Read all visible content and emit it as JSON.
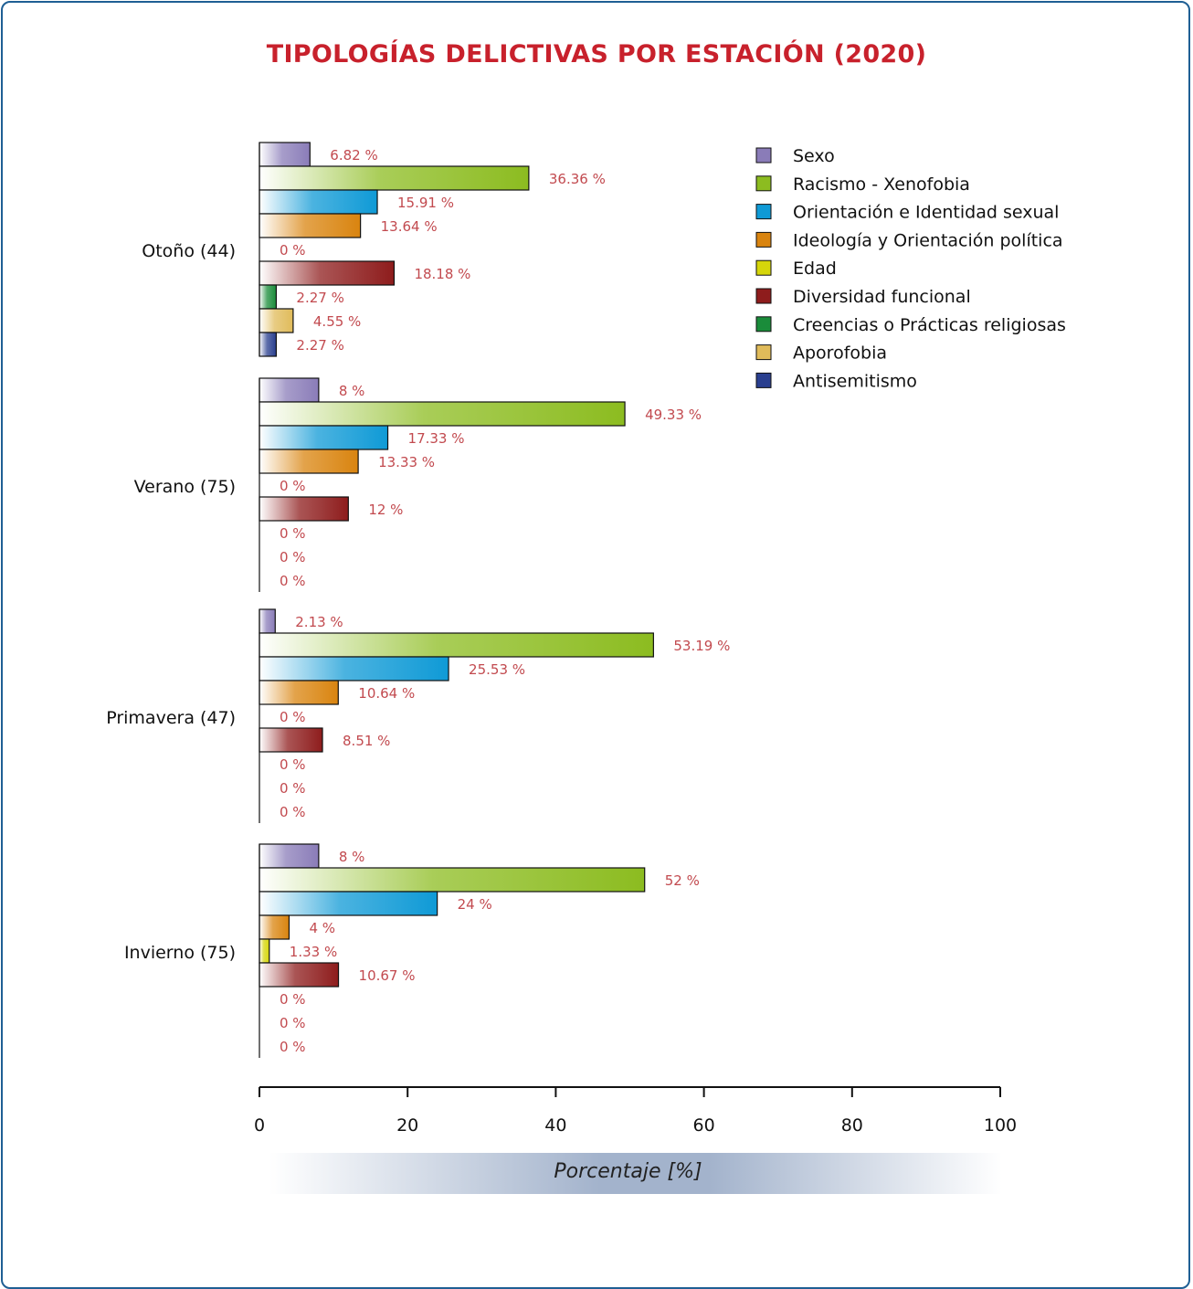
{
  "chart_data": {
    "type": "bar",
    "orientation": "horizontal",
    "title": "TIPOLOGÍAS DELICTIVAS POR ESTACIÓN (2020)",
    "xlabel": "Porcentaje [%]",
    "xlim": [
      0,
      100
    ],
    "xticks": [
      0,
      20,
      40,
      60,
      80,
      100
    ],
    "value_suffix": " %",
    "legend_position": "top-right",
    "categories": [
      "Otoño (44)",
      "Verano (75)",
      "Primavera (47)",
      "Invierno (75)"
    ],
    "series": [
      {
        "name": "Sexo",
        "color": "#8a7cb8",
        "values": [
          6.82,
          8,
          2.13,
          8
        ]
      },
      {
        "name": "Racismo - Xenofobia",
        "color": "#8cbc20",
        "values": [
          36.36,
          49.33,
          53.19,
          52
        ]
      },
      {
        "name": "Orientación e Identidad sexual",
        "color": "#0f9ad6",
        "values": [
          15.91,
          17.33,
          25.53,
          24
        ]
      },
      {
        "name": "Ideología y Orientación política",
        "color": "#d9840f",
        "values": [
          13.64,
          13.33,
          10.64,
          4
        ]
      },
      {
        "name": "Edad",
        "color": "#d6d60a",
        "values": [
          0,
          0,
          0,
          1.33
        ]
      },
      {
        "name": "Diversidad funcional",
        "color": "#8e1c1c",
        "values": [
          18.18,
          12,
          8.51,
          10.67
        ]
      },
      {
        "name": "Creencias o Prácticas religiosas",
        "color": "#1a8c3a",
        "values": [
          2.27,
          0,
          0,
          0
        ]
      },
      {
        "name": "Aporofobia",
        "color": "#e0bb5a",
        "values": [
          4.55,
          0,
          0,
          0
        ]
      },
      {
        "name": "Antisemitismo",
        "color": "#2a3f8f",
        "values": [
          2.27,
          0,
          0,
          0
        ]
      }
    ]
  }
}
